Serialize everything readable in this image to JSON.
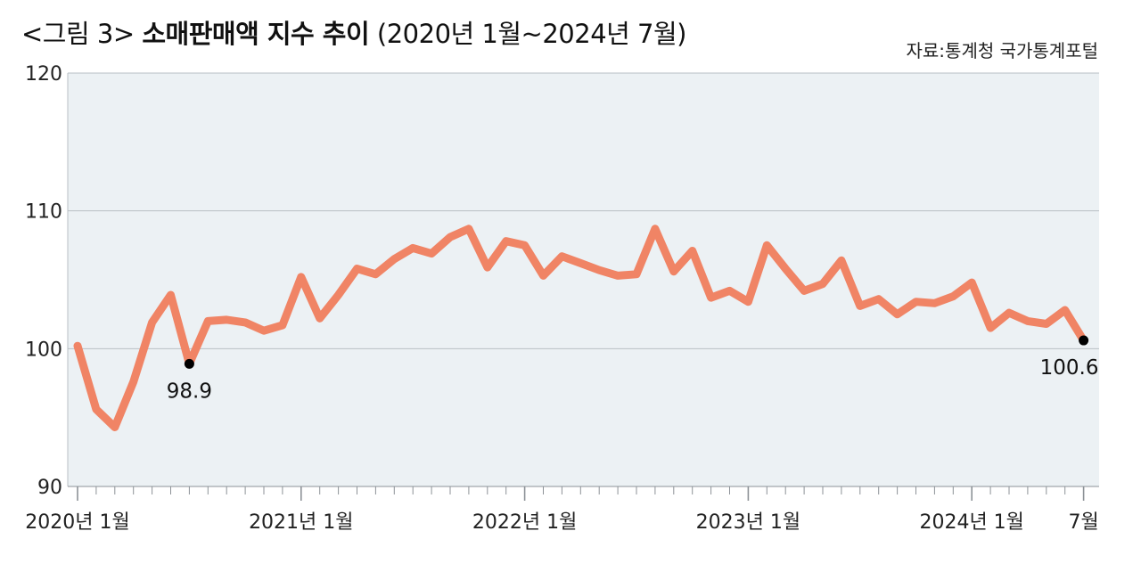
{
  "title": {
    "prefix": "<그림 3>",
    "main": "소매판매액 지수 추이",
    "period": "(2020년 1월~2024년 7월)"
  },
  "source": "자료:통계청 국가통계포털",
  "colors": {
    "line": "#f08465",
    "plot_bg": "#ecf1f4",
    "grid": "#b9bfc4",
    "point": "#000000"
  },
  "chart_data": {
    "type": "line",
    "title": "소매판매액 지수 추이",
    "xlabel": "",
    "ylabel": "",
    "ylim": [
      90,
      120
    ],
    "yticks": [
      90,
      100,
      110,
      120
    ],
    "grid": true,
    "x": [
      "2020-01",
      "2020-02",
      "2020-03",
      "2020-04",
      "2020-05",
      "2020-06",
      "2020-07",
      "2020-08",
      "2020-09",
      "2020-10",
      "2020-11",
      "2020-12",
      "2021-01",
      "2021-02",
      "2021-03",
      "2021-04",
      "2021-05",
      "2021-06",
      "2021-07",
      "2021-08",
      "2021-09",
      "2021-10",
      "2021-11",
      "2021-12",
      "2022-01",
      "2022-02",
      "2022-03",
      "2022-04",
      "2022-05",
      "2022-06",
      "2022-07",
      "2022-08",
      "2022-09",
      "2022-10",
      "2022-11",
      "2022-12",
      "2023-01",
      "2023-02",
      "2023-03",
      "2023-04",
      "2023-05",
      "2023-06",
      "2023-07",
      "2023-08",
      "2023-09",
      "2023-10",
      "2023-11",
      "2023-12",
      "2024-01",
      "2024-02",
      "2024-03",
      "2024-04",
      "2024-05",
      "2024-06",
      "2024-07"
    ],
    "x_tick_labels": [
      {
        "index": 0,
        "label": "2020년 1월"
      },
      {
        "index": 12,
        "label": "2021년 1월"
      },
      {
        "index": 24,
        "label": "2022년 1월"
      },
      {
        "index": 36,
        "label": "2023년 1월"
      },
      {
        "index": 48,
        "label": "2024년 1월"
      },
      {
        "index": 54,
        "label": "7월"
      }
    ],
    "series": [
      {
        "values": [
          100.2,
          95.6,
          94.3,
          97.6,
          101.9,
          103.9,
          98.9,
          102.0,
          102.1,
          101.9,
          101.3,
          101.7,
          105.2,
          102.2,
          103.9,
          105.8,
          105.4,
          106.5,
          107.3,
          106.9,
          108.1,
          108.7,
          105.9,
          107.8,
          107.5,
          105.3,
          106.7,
          106.2,
          105.7,
          105.3,
          105.4,
          108.7,
          105.6,
          107.1,
          103.7,
          104.2,
          103.4,
          107.5,
          105.8,
          104.2,
          104.7,
          106.4,
          103.1,
          103.6,
          102.5,
          103.4,
          103.3,
          103.8,
          104.8,
          101.5,
          102.6,
          102.0,
          101.8,
          102.8,
          100.6
        ]
      }
    ],
    "annotations": [
      {
        "index": 6,
        "value": 98.9,
        "label": "98.9"
      },
      {
        "index": 54,
        "value": 100.6,
        "label": "100.6"
      }
    ]
  }
}
